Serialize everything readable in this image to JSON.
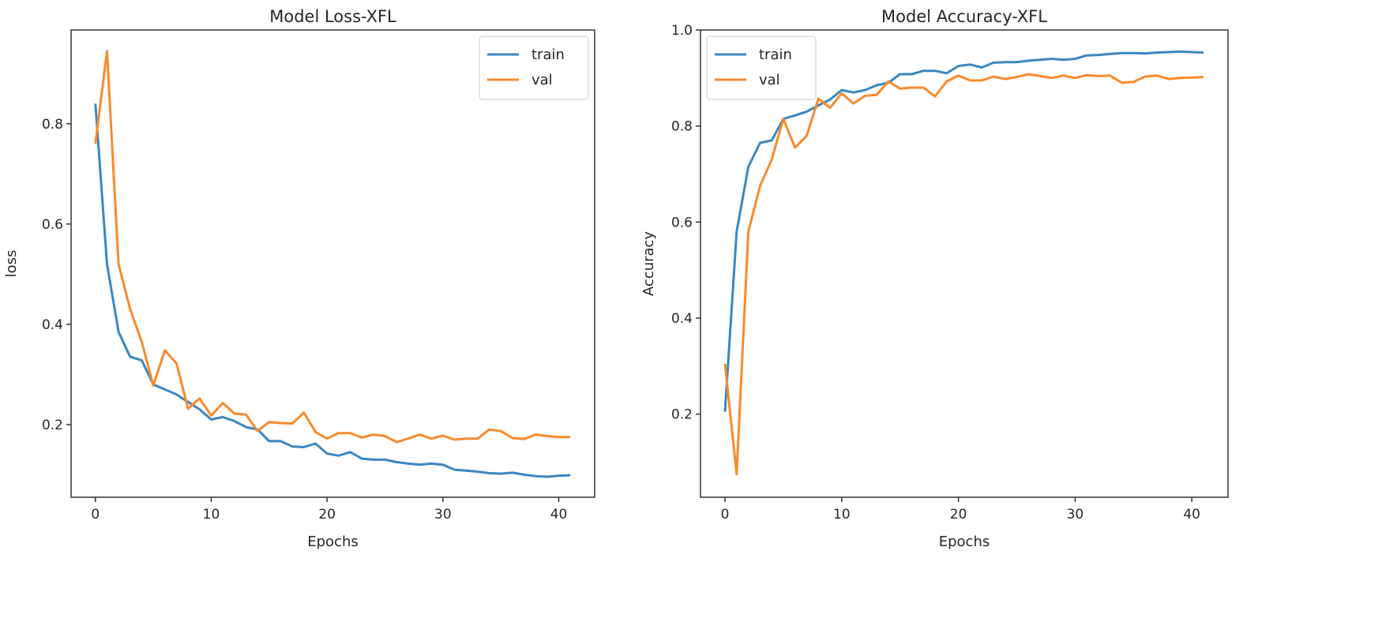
{
  "colors": {
    "train": "#3a87c1",
    "val": "#f98a2c"
  },
  "chart_data": [
    {
      "type": "line",
      "title": "Model Loss-XFL",
      "xlabel": "Epochs",
      "ylabel": "loss",
      "xlim": [
        -2.1,
        43.1
      ],
      "ylim": [
        0.055,
        0.987
      ],
      "xticks": [
        0,
        10,
        20,
        30,
        40
      ],
      "yticks": [
        0.2,
        0.4,
        0.6,
        0.8
      ],
      "ytick_labels": [
        "0.2",
        "0.4",
        "0.6",
        "0.8"
      ],
      "grid": false,
      "legend": "top-right",
      "x": [
        0,
        1,
        2,
        3,
        4,
        5,
        6,
        7,
        8,
        9,
        10,
        11,
        12,
        13,
        14,
        15,
        16,
        17,
        18,
        19,
        20,
        21,
        22,
        23,
        24,
        25,
        26,
        27,
        28,
        29,
        30,
        31,
        32,
        33,
        34,
        35,
        36,
        37,
        38,
        39,
        40,
        41
      ],
      "series": [
        {
          "name": "train",
          "values": [
            0.84,
            0.52,
            0.385,
            0.335,
            0.328,
            0.28,
            0.27,
            0.26,
            0.245,
            0.23,
            0.21,
            0.215,
            0.207,
            0.195,
            0.19,
            0.167,
            0.167,
            0.156,
            0.155,
            0.162,
            0.142,
            0.138,
            0.145,
            0.132,
            0.13,
            0.13,
            0.125,
            0.122,
            0.12,
            0.122,
            0.12,
            0.11,
            0.108,
            0.106,
            0.103,
            0.102,
            0.104,
            0.1,
            0.097,
            0.096,
            0.098,
            0.099
          ]
        },
        {
          "name": "val",
          "values": [
            0.76,
            0.945,
            0.52,
            0.43,
            0.365,
            0.278,
            0.348,
            0.322,
            0.232,
            0.252,
            0.218,
            0.243,
            0.222,
            0.22,
            0.187,
            0.205,
            0.203,
            0.202,
            0.224,
            0.185,
            0.172,
            0.183,
            0.183,
            0.174,
            0.18,
            0.177,
            0.165,
            0.172,
            0.18,
            0.172,
            0.178,
            0.17,
            0.172,
            0.172,
            0.19,
            0.187,
            0.173,
            0.171,
            0.18,
            0.177,
            0.175,
            0.175
          ]
        }
      ]
    },
    {
      "type": "line",
      "title": "Model Accuracy-XFL",
      "xlabel": "Epochs",
      "ylabel": "Accuracy",
      "xlim": [
        -2.1,
        43.1
      ],
      "ylim": [
        0.027,
        1.0
      ],
      "xticks": [
        0,
        10,
        20,
        30,
        40
      ],
      "yticks": [
        0.2,
        0.4,
        0.6,
        0.8,
        1.0
      ],
      "ytick_labels": [
        "0.2",
        "0.4",
        "0.6",
        "0.8",
        "1.0"
      ],
      "grid": false,
      "legend": "top-left",
      "x": [
        0,
        1,
        2,
        3,
        4,
        5,
        6,
        7,
        8,
        9,
        10,
        11,
        12,
        13,
        14,
        15,
        16,
        17,
        18,
        19,
        20,
        21,
        22,
        23,
        24,
        25,
        26,
        27,
        28,
        29,
        30,
        31,
        32,
        33,
        34,
        35,
        36,
        37,
        38,
        39,
        40,
        41
      ],
      "series": [
        {
          "name": "train",
          "values": [
            0.205,
            0.58,
            0.715,
            0.765,
            0.77,
            0.815,
            0.822,
            0.83,
            0.843,
            0.855,
            0.875,
            0.87,
            0.875,
            0.885,
            0.89,
            0.908,
            0.908,
            0.915,
            0.915,
            0.91,
            0.925,
            0.928,
            0.922,
            0.932,
            0.933,
            0.933,
            0.936,
            0.938,
            0.94,
            0.938,
            0.94,
            0.947,
            0.948,
            0.95,
            0.952,
            0.952,
            0.951,
            0.953,
            0.954,
            0.955,
            0.954,
            0.953
          ]
        },
        {
          "name": "val",
          "values": [
            0.305,
            0.075,
            0.58,
            0.675,
            0.73,
            0.815,
            0.755,
            0.78,
            0.857,
            0.838,
            0.868,
            0.847,
            0.863,
            0.865,
            0.893,
            0.878,
            0.88,
            0.88,
            0.862,
            0.893,
            0.905,
            0.895,
            0.895,
            0.903,
            0.898,
            0.902,
            0.908,
            0.904,
            0.9,
            0.905,
            0.9,
            0.906,
            0.904,
            0.905,
            0.89,
            0.892,
            0.903,
            0.905,
            0.898,
            0.9,
            0.901,
            0.902
          ]
        }
      ]
    }
  ]
}
